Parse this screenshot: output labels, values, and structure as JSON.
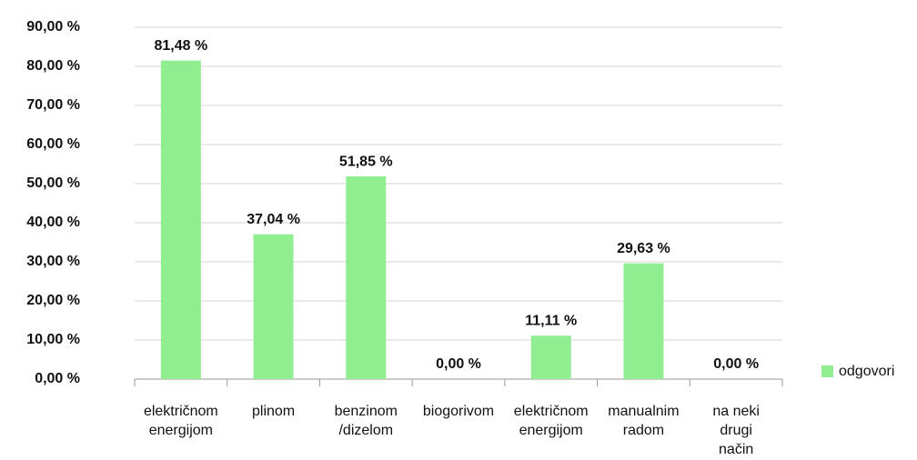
{
  "chart_data": {
    "type": "bar",
    "categories": [
      "električnom\nenergijom",
      "plinom",
      "benzinom\n/dizelom",
      "biogorivom",
      "električnom\nenergijom",
      "manualnim\nradom",
      "na neki\ndrugi\nnačin"
    ],
    "series": [
      {
        "name": "odgovori",
        "color": "#90ee90",
        "values": [
          81.48,
          37.04,
          51.85,
          0,
          11.11,
          29.63,
          0
        ],
        "value_labels": [
          "81,48 %",
          "37,04 %",
          "51,85 %",
          "0,00 %",
          "11,11 %",
          "29,63 %",
          "0,00 %"
        ]
      }
    ],
    "ylim": [
      0,
      90
    ],
    "yticks": [
      {
        "value": 0,
        "label": "0,00 %"
      },
      {
        "value": 10,
        "label": "10,00 %"
      },
      {
        "value": 20,
        "label": "20,00 %"
      },
      {
        "value": 30,
        "label": "30,00 %"
      },
      {
        "value": 40,
        "label": "40,00 %"
      },
      {
        "value": 50,
        "label": "50,00 %"
      },
      {
        "value": 60,
        "label": "60,00 %"
      },
      {
        "value": 70,
        "label": "70,00 %"
      },
      {
        "value": 80,
        "label": "80,00 %"
      },
      {
        "value": 90,
        "label": "90,00 %"
      }
    ],
    "grid": true,
    "legend": "right"
  }
}
